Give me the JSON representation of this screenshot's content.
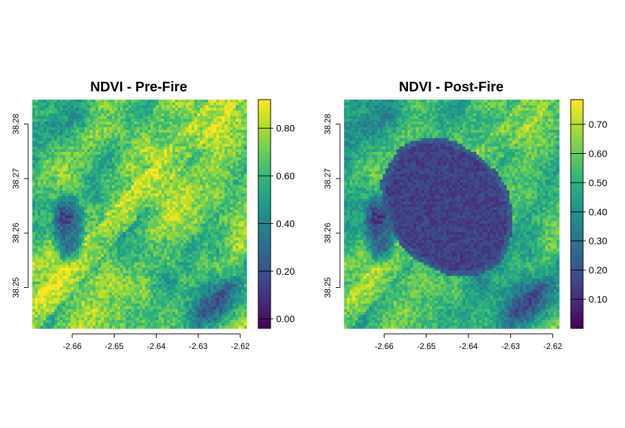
{
  "chart_data": [
    {
      "type": "heatmap",
      "title": "NDVI - Pre-Fire",
      "x_ticks": [
        "-2.66",
        "-2.65",
        "-2.64",
        "-2.63",
        "-2.62"
      ],
      "x_tick_values": [
        -2.66,
        -2.65,
        -2.64,
        -2.63,
        -2.62
      ],
      "xlim": [
        -2.6695,
        -2.6185
      ],
      "y_ticks": [
        "38.25",
        "38.26",
        "38.27",
        "38.28"
      ],
      "y_tick_values": [
        38.25,
        38.26,
        38.27,
        38.28
      ],
      "ylim": [
        38.2425,
        38.2845
      ],
      "colorbar": {
        "ticks": [
          "0.00",
          "0.20",
          "0.40",
          "0.60",
          "0.80"
        ],
        "tick_values": [
          0.0,
          0.2,
          0.4,
          0.6,
          0.8
        ],
        "range": [
          -0.04,
          0.92
        ]
      },
      "colormap": "viridis",
      "burned_area": false
    },
    {
      "type": "heatmap",
      "title": "NDVI - Post-Fire",
      "x_ticks": [
        "-2.66",
        "-2.65",
        "-2.64",
        "-2.63",
        "-2.62"
      ],
      "x_tick_values": [
        -2.66,
        -2.65,
        -2.64,
        -2.63,
        -2.62
      ],
      "xlim": [
        -2.6695,
        -2.6185
      ],
      "y_ticks": [
        "38.25",
        "38.26",
        "38.27",
        "38.28"
      ],
      "y_tick_values": [
        38.25,
        38.26,
        38.27,
        38.28
      ],
      "ylim": [
        38.2425,
        38.2845
      ],
      "colorbar": {
        "ticks": [
          "0.10",
          "0.20",
          "0.30",
          "0.40",
          "0.50",
          "0.60",
          "0.70"
        ],
        "tick_values": [
          0.1,
          0.2,
          0.3,
          0.4,
          0.5,
          0.6,
          0.7
        ],
        "range": [
          0.0,
          0.785
        ]
      },
      "colormap": "viridis",
      "burned_area": true
    }
  ],
  "colors": {
    "viridis": [
      "#440154",
      "#482878",
      "#3e4a89",
      "#31688e",
      "#26828e",
      "#1f9e89",
      "#35b779",
      "#6ece58",
      "#b5de2b",
      "#fde725"
    ]
  }
}
